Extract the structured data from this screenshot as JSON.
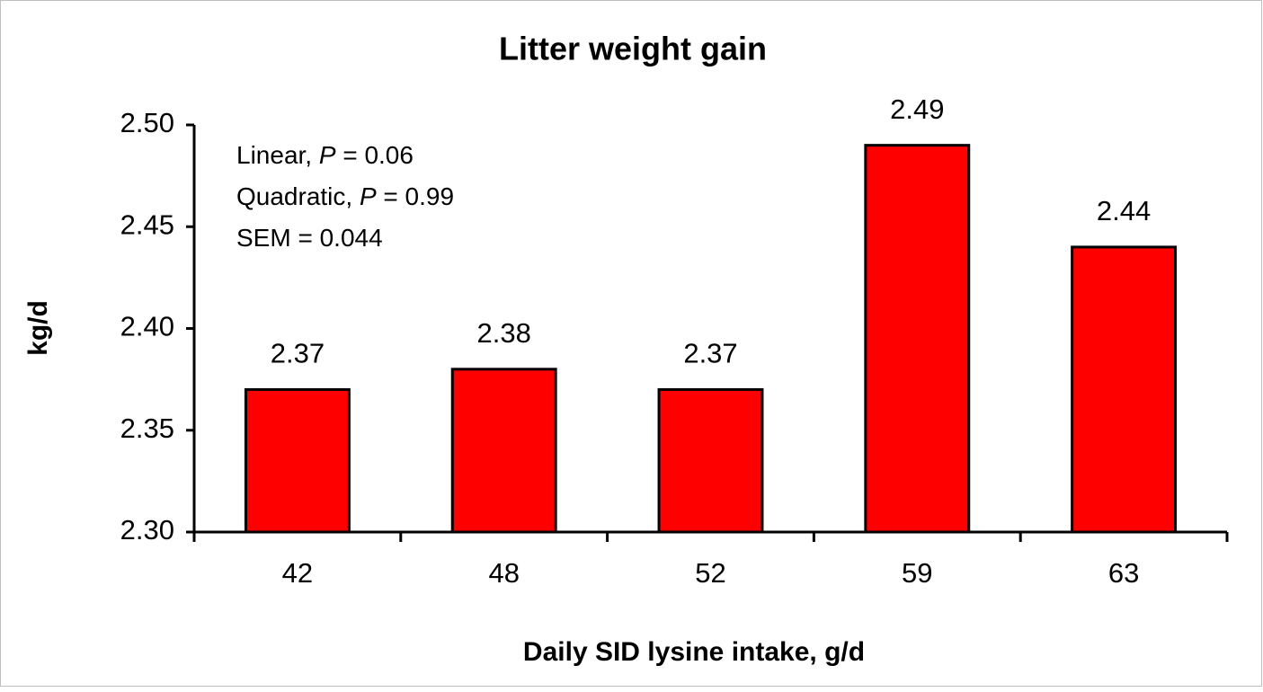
{
  "chart_data": {
    "type": "bar",
    "title": "Litter weight gain",
    "x_label": "Daily SID lysine intake, g/d",
    "y_label": "kg/d",
    "categories": [
      "42",
      "48",
      "52",
      "59",
      "63"
    ],
    "values": [
      2.37,
      2.38,
      2.37,
      2.49,
      2.44
    ],
    "color": "#ff0000",
    "ylim": [
      2.3,
      2.5
    ],
    "yticks": [
      {
        "value": 2.3,
        "label": "2.30"
      },
      2.35,
      {
        "value": 2.4,
        "label": "2.40"
      },
      2.45,
      {
        "value": 2.5,
        "label": "2.50"
      }
    ],
    "grid": false,
    "annotations": [
      [
        "Linear, ",
        "P",
        " = 0.06"
      ],
      [
        "Quadratic, ",
        "P",
        " = 0.99"
      ],
      [
        "SEM = 0.044"
      ]
    ]
  }
}
